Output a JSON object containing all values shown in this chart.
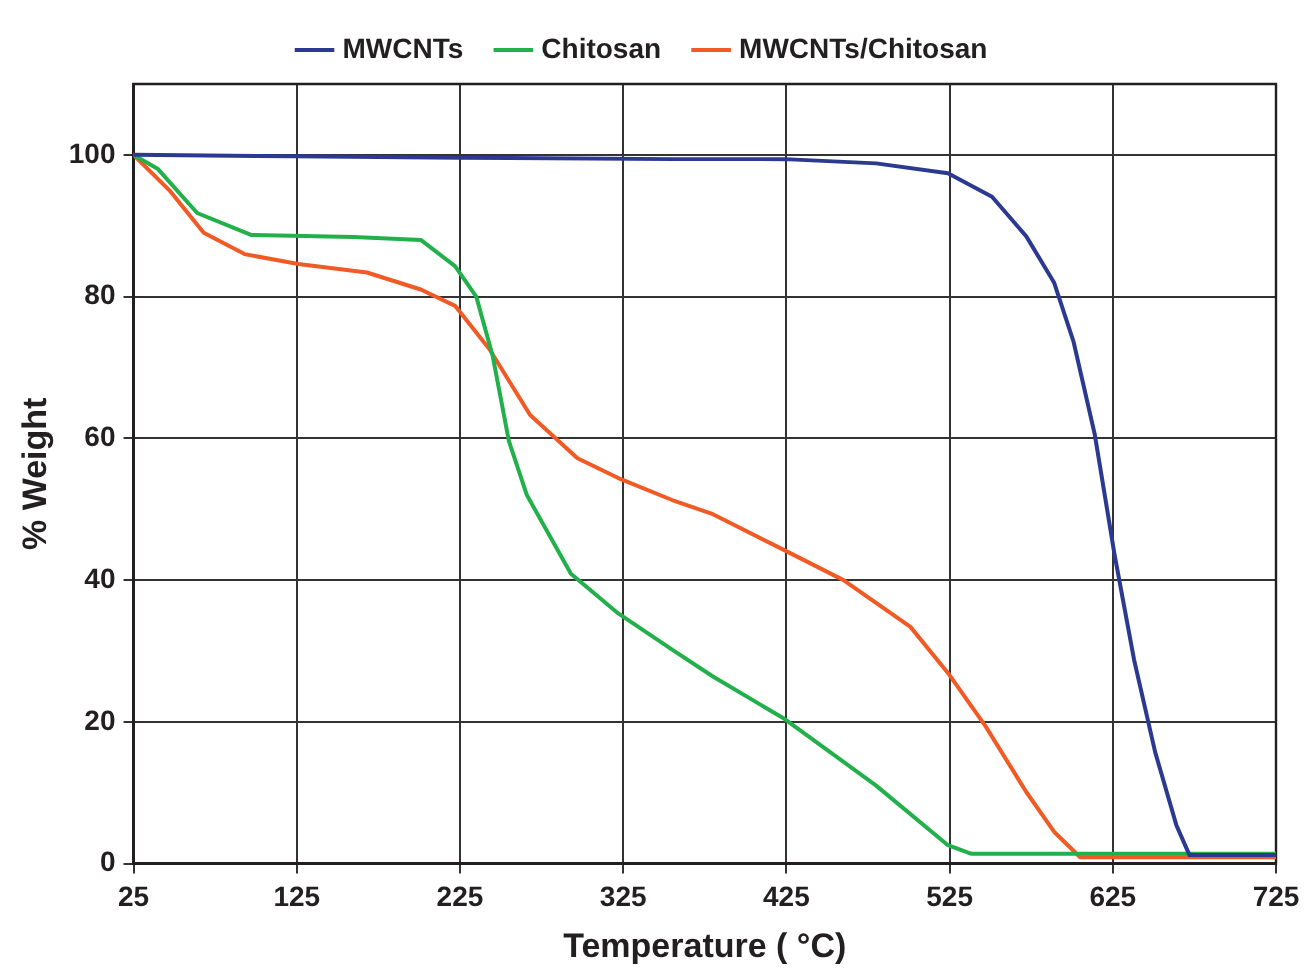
{
  "chart_data": {
    "type": "line",
    "xlabel": "Temperature ( °C)",
    "ylabel": "% Weight",
    "xlim": [
      25,
      725
    ],
    "xticks": [
      25,
      125,
      225,
      325,
      425,
      525,
      625,
      725
    ],
    "ylim": [
      0,
      110
    ],
    "yticks": [
      0,
      20,
      40,
      60,
      80,
      100
    ],
    "grid": true,
    "legend": "top",
    "marker": "none",
    "line_style": "solid",
    "series": [
      {
        "name": "MWCNTs",
        "color": "#2b3990",
        "x": [
          25,
          125,
          225,
          355,
          424,
          480,
          524,
          551,
          572,
          589,
          601,
          614,
          626,
          638,
          651,
          664,
          672,
          725
        ],
        "values": [
          100,
          99.8,
          99.6,
          99.4,
          99.4,
          98.8,
          97.4,
          94.1,
          88.5,
          82,
          73.6,
          60.5,
          43.7,
          28.8,
          15.7,
          5.4,
          1.2,
          1.2
        ]
      },
      {
        "name": "Chitosan",
        "color": "#22b04a",
        "x": [
          25,
          40,
          64,
          97,
          160,
          201,
          222,
          235,
          245,
          255,
          266,
          293,
          322,
          355,
          380,
          424,
          480,
          524,
          538,
          725
        ],
        "values": [
          100,
          98,
          91.8,
          88.7,
          88.4,
          88,
          84.3,
          80,
          71.7,
          59.6,
          52,
          40.9,
          35.3,
          30.2,
          26.4,
          20.4,
          11,
          2.6,
          1.4,
          1.4
        ]
      },
      {
        "name": "MWCNTs/Chitosan",
        "color": "#f15a24",
        "x": [
          25,
          47,
          68,
          93,
          126,
          168,
          201,
          222,
          243,
          268,
          297,
          322,
          355,
          380,
          424,
          460,
          501,
          524,
          547,
          572,
          589,
          605,
          725
        ],
        "values": [
          100,
          95,
          89,
          86,
          84.6,
          83.4,
          81,
          78.7,
          72.6,
          63.3,
          57.2,
          54.4,
          51.3,
          49.3,
          44.2,
          40,
          33.4,
          26.9,
          19.4,
          10.1,
          4.5,
          0.9,
          0.9
        ]
      }
    ]
  }
}
